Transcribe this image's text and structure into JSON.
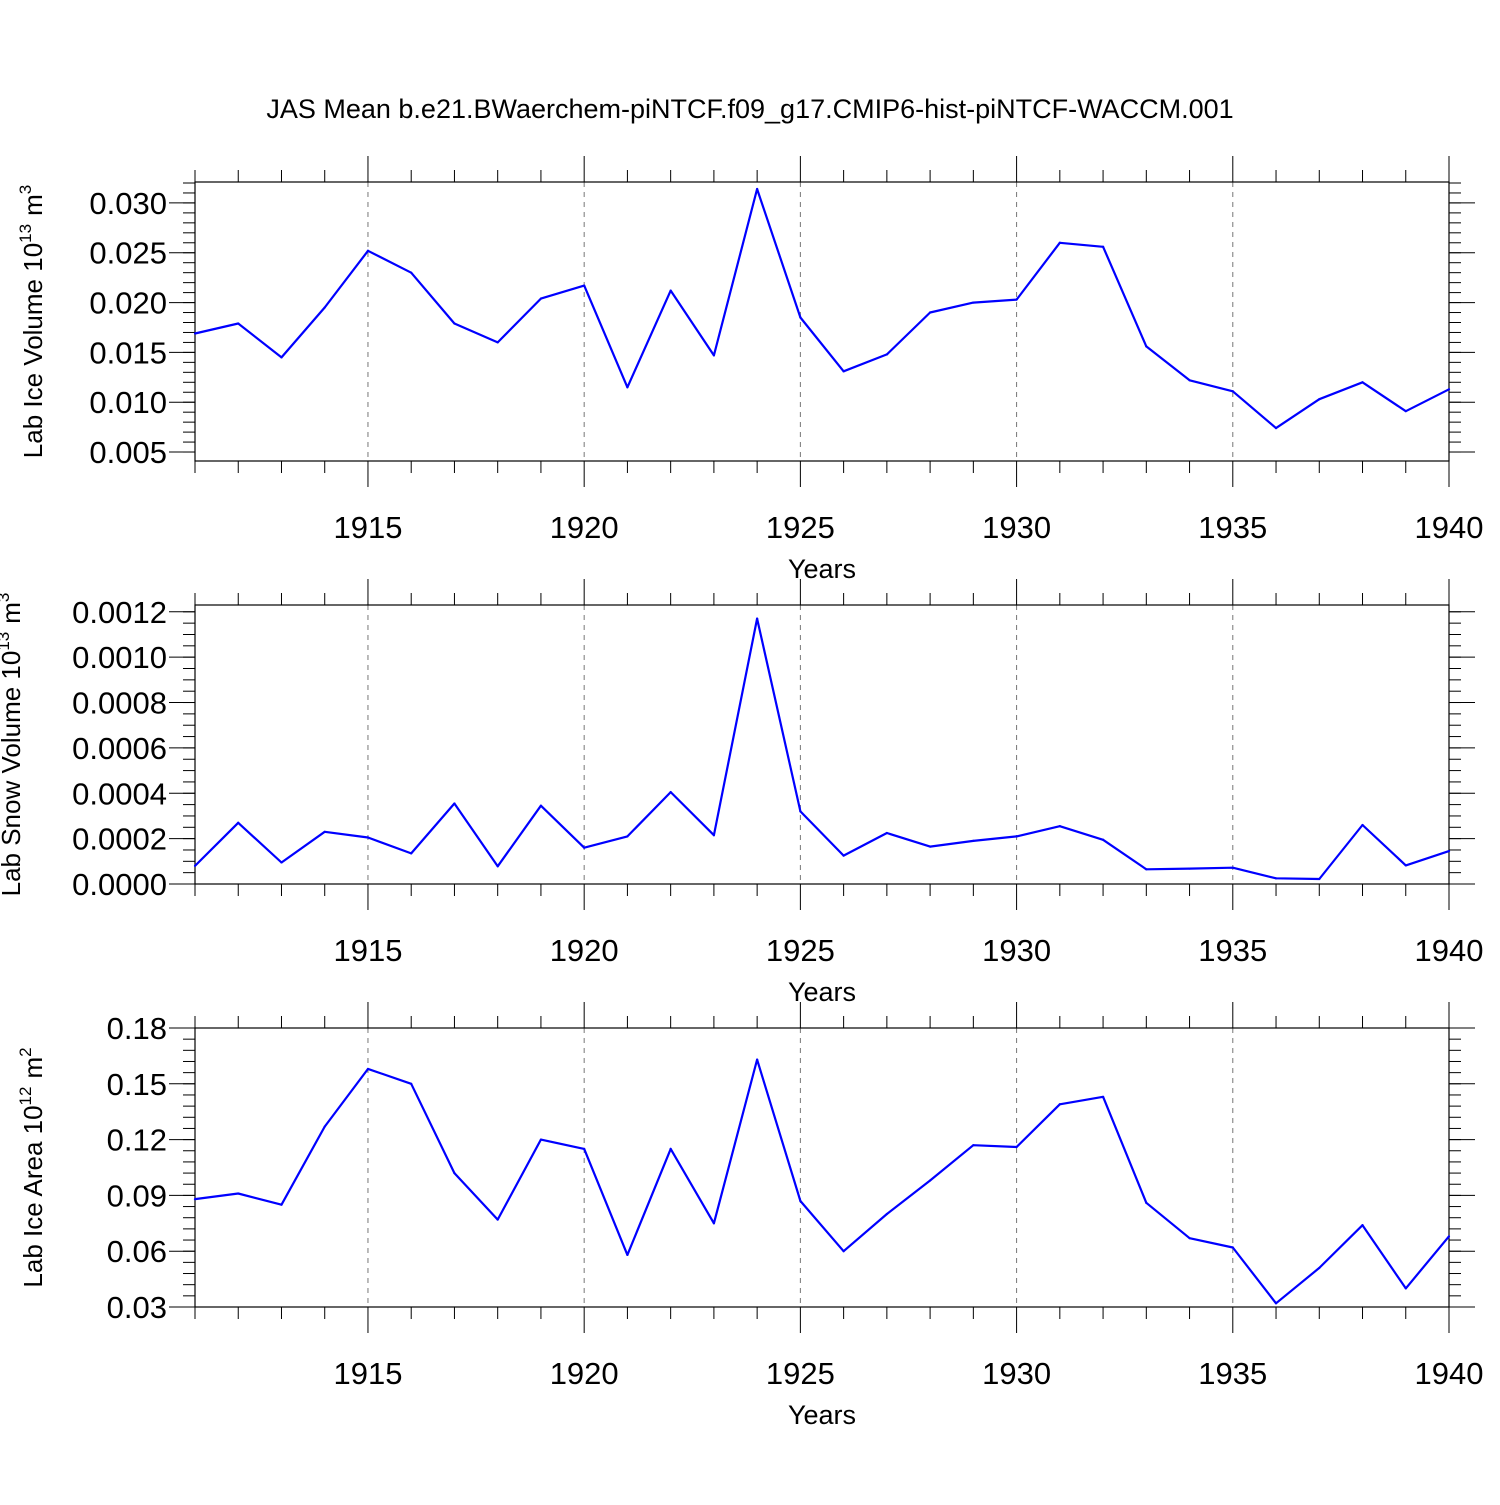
{
  "title": "JAS Mean b.e21.BWaerchem-piNTCF.f09_g17.CMIP6-hist-piNTCF-WACCM.001",
  "colors": {
    "line": "#0000ff",
    "axis": "#000000",
    "grid": "#777777"
  },
  "chart_data": [
    {
      "type": "line",
      "series_name": "Lab Ice Volume",
      "ylabel": "Lab Ice Volume 10",
      "ylabel_sup": "13",
      "ylabel_unit": "m",
      "ylabel_unit_sup": "3",
      "xlabel": "Years",
      "xlim": [
        1911,
        1940
      ],
      "ylim": [
        0.0041,
        0.0321
      ],
      "yticks": [
        0.005,
        0.01,
        0.015,
        0.02,
        0.025,
        0.03
      ],
      "ytick_labels": [
        "0.005",
        "0.010",
        "0.015",
        "0.020",
        "0.025",
        "0.030"
      ],
      "yminor_step": 0.001,
      "xticks": [
        1915,
        1920,
        1925,
        1930,
        1935,
        1940
      ],
      "xtick_labels": [
        "1915",
        "1920",
        "1925",
        "1930",
        "1935",
        "1940"
      ],
      "grid": "x-dashed",
      "x": [
        1911,
        1912,
        1913,
        1914,
        1915,
        1916,
        1917,
        1918,
        1919,
        1920,
        1921,
        1922,
        1923,
        1924,
        1925,
        1926,
        1927,
        1928,
        1929,
        1930,
        1931,
        1932,
        1933,
        1934,
        1935,
        1936,
        1937,
        1938,
        1939,
        1940
      ],
      "y": [
        0.0169,
        0.0179,
        0.0145,
        0.0195,
        0.0252,
        0.023,
        0.0179,
        0.016,
        0.0204,
        0.0217,
        0.0115,
        0.0212,
        0.0147,
        0.0314,
        0.0185,
        0.0131,
        0.0148,
        0.019,
        0.02,
        0.0203,
        0.026,
        0.0256,
        0.0156,
        0.0122,
        0.0111,
        0.0074,
        0.0103,
        0.012,
        0.0091,
        0.0113
      ]
    },
    {
      "type": "line",
      "series_name": "Lab Snow Volume",
      "ylabel": "Lab Snow Volume 10",
      "ylabel_sup": "13",
      "ylabel_unit": "m",
      "ylabel_unit_sup": "3",
      "xlabel": "Years",
      "xlim": [
        1911,
        1940
      ],
      "ylim": [
        0.0,
        0.00123
      ],
      "yticks": [
        0.0,
        0.0002,
        0.0004,
        0.0006,
        0.0008,
        0.001,
        0.0012
      ],
      "ytick_labels": [
        "0.0000",
        "0.0002",
        "0.0004",
        "0.0006",
        "0.0008",
        "0.0010",
        "0.0012"
      ],
      "yminor_step": 5e-05,
      "xticks": [
        1915,
        1920,
        1925,
        1930,
        1935,
        1940
      ],
      "xtick_labels": [
        "1915",
        "1920",
        "1925",
        "1930",
        "1935",
        "1940"
      ],
      "grid": "x-dashed",
      "x": [
        1911,
        1912,
        1913,
        1914,
        1915,
        1916,
        1917,
        1918,
        1919,
        1920,
        1921,
        1922,
        1923,
        1924,
        1925,
        1926,
        1927,
        1928,
        1929,
        1930,
        1931,
        1932,
        1933,
        1934,
        1935,
        1936,
        1937,
        1938,
        1939,
        1940
      ],
      "y": [
        8e-05,
        0.00027,
        9.5e-05,
        0.00023,
        0.000205,
        0.000135,
        0.000355,
        7.8e-05,
        0.000345,
        0.00016,
        0.00021,
        0.000405,
        0.000215,
        0.00117,
        0.00032,
        0.000125,
        0.000225,
        0.000165,
        0.00019,
        0.00021,
        0.000255,
        0.000195,
        6.5e-05,
        6.8e-05,
        7.2e-05,
        2.5e-05,
        2.2e-05,
        0.00026,
        8.2e-05,
        0.000145
      ]
    },
    {
      "type": "line",
      "series_name": "Lab Ice Area",
      "ylabel": "Lab Ice Area 10",
      "ylabel_sup": "12",
      "ylabel_unit": "m",
      "ylabel_unit_sup": "2",
      "xlabel": "Years",
      "xlim": [
        1911,
        1940
      ],
      "ylim": [
        0.03,
        0.18
      ],
      "yticks": [
        0.03,
        0.06,
        0.09,
        0.12,
        0.15,
        0.18
      ],
      "ytick_labels": [
        "0.03",
        "0.06",
        "0.09",
        "0.12",
        "0.15",
        "0.18"
      ],
      "yminor_step": 0.006,
      "xticks": [
        1915,
        1920,
        1925,
        1930,
        1935,
        1940
      ],
      "xtick_labels": [
        "1915",
        "1920",
        "1925",
        "1930",
        "1935",
        "1940"
      ],
      "grid": "x-dashed",
      "x": [
        1911,
        1912,
        1913,
        1914,
        1915,
        1916,
        1917,
        1918,
        1919,
        1920,
        1921,
        1922,
        1923,
        1924,
        1925,
        1926,
        1927,
        1928,
        1929,
        1930,
        1931,
        1932,
        1933,
        1934,
        1935,
        1936,
        1937,
        1938,
        1939,
        1940
      ],
      "y": [
        0.088,
        0.091,
        0.085,
        0.127,
        0.158,
        0.15,
        0.102,
        0.077,
        0.12,
        0.115,
        0.058,
        0.115,
        0.075,
        0.163,
        0.087,
        0.06,
        0.08,
        0.098,
        0.117,
        0.116,
        0.139,
        0.143,
        0.086,
        0.067,
        0.062,
        0.032,
        0.051,
        0.074,
        0.04,
        0.068
      ]
    }
  ]
}
